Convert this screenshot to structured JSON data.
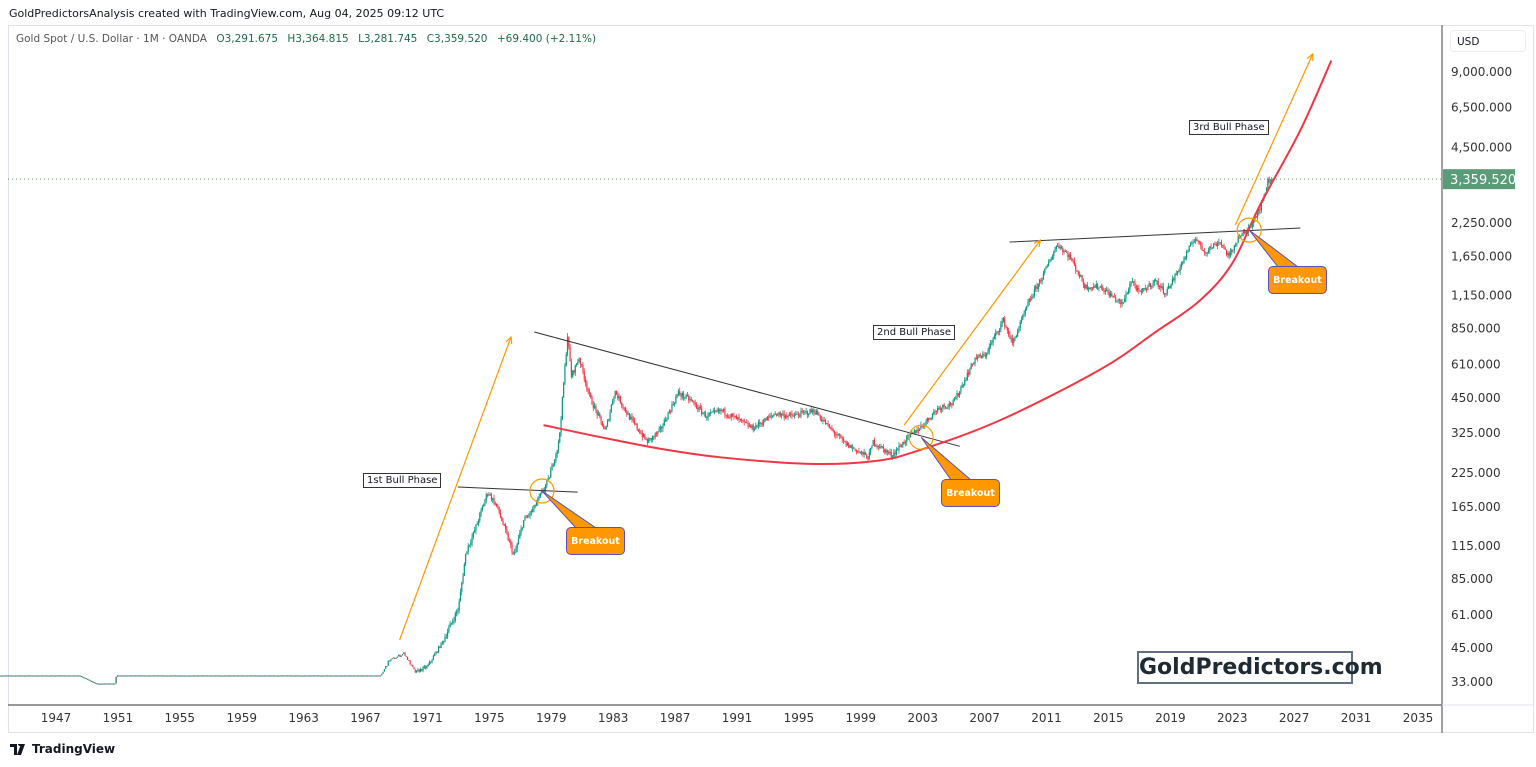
{
  "credit": "GoldPredictorsAnalysis created with TradingView.com, Aug 04, 2025 09:12 UTC",
  "legend": {
    "symbol": "Gold Spot / U.S. Dollar · 1M · OANDA",
    "open": "O3,291.675",
    "high": "H3,364.815",
    "low": "L3,281.745",
    "close": "C3,359.520",
    "change": "+69.400 (+2.11%)"
  },
  "currency": "USD",
  "watermark": "GoldPredictors.com",
  "footer": {
    "brand": "TradingView"
  },
  "colors": {
    "up": "#089981",
    "down": "#f23645",
    "curve": "#f23645",
    "arrow": "#ff9800",
    "price_label": "#5b9c78",
    "trendline": "#333333"
  },
  "chart_data": {
    "type": "candlestick",
    "title": "Gold Spot / U.S. Dollar · 1M · OANDA",
    "scale": "log",
    "ylim": [
      30,
      11000
    ],
    "xlim": [
      1943.3,
      2036.3
    ],
    "last_price": 3359.52,
    "last_price_label": "3,359.520",
    "y_ticks": [
      {
        "v": 9000,
        "label": "9,000.000"
      },
      {
        "v": 6500,
        "label": "6,500.000"
      },
      {
        "v": 4500,
        "label": "4,500.000"
      },
      {
        "v": 2250,
        "label": "2,250.000"
      },
      {
        "v": 1650,
        "label": "1,650.000"
      },
      {
        "v": 1150,
        "label": "1,150.000"
      },
      {
        "v": 850,
        "label": "850.000"
      },
      {
        "v": 610,
        "label": "610.000"
      },
      {
        "v": 450,
        "label": "450.000"
      },
      {
        "v": 325,
        "label": "325.000"
      },
      {
        "v": 225,
        "label": "225.000"
      },
      {
        "v": 165,
        "label": "165.000"
      },
      {
        "v": 115,
        "label": "115.000"
      },
      {
        "v": 85,
        "label": "85.000"
      },
      {
        "v": 61,
        "label": "61.000"
      },
      {
        "v": 45,
        "label": "45.000"
      },
      {
        "v": 33,
        "label": "33.000"
      }
    ],
    "x_ticks": [
      "1947",
      "1951",
      "1955",
      "1959",
      "1963",
      "1967",
      "1971",
      "1975",
      "1979",
      "1983",
      "1987",
      "1991",
      "1995",
      "1999",
      "2003",
      "2007",
      "2011",
      "2015",
      "2019",
      "2023",
      "2027",
      "2031",
      "2035"
    ],
    "price_path": [
      [
        1943.3,
        35
      ],
      [
        1948.5,
        35
      ],
      [
        1949.6,
        32.5
      ],
      [
        1950.8,
        32.5
      ],
      [
        1950.9,
        35
      ],
      [
        1968.0,
        35
      ],
      [
        1968.5,
        40
      ],
      [
        1969.5,
        43
      ],
      [
        1970.2,
        36
      ],
      [
        1971.0,
        38
      ],
      [
        1972.0,
        48
      ],
      [
        1973.0,
        65
      ],
      [
        1973.5,
        110
      ],
      [
        1974.0,
        130
      ],
      [
        1974.9,
        190
      ],
      [
        1975.5,
        165
      ],
      [
        1976.6,
        105
      ],
      [
        1977.2,
        145
      ],
      [
        1977.8,
        160
      ],
      [
        1978.8,
        210
      ],
      [
        1979.5,
        300
      ],
      [
        1980.05,
        800
      ],
      [
        1980.3,
        550
      ],
      [
        1980.8,
        650
      ],
      [
        1981.5,
        450
      ],
      [
        1982.5,
        330
      ],
      [
        1983.1,
        480
      ],
      [
        1984.0,
        380
      ],
      [
        1985.2,
        300
      ],
      [
        1986.0,
        330
      ],
      [
        1987.2,
        470
      ],
      [
        1988.0,
        440
      ],
      [
        1989.0,
        380
      ],
      [
        1990.0,
        400
      ],
      [
        1991.0,
        370
      ],
      [
        1992.0,
        340
      ],
      [
        1993.5,
        390
      ],
      [
        1994.5,
        380
      ],
      [
        1996.0,
        400
      ],
      [
        1997.0,
        340
      ],
      [
        1998.0,
        295
      ],
      [
        1999.5,
        260
      ],
      [
        1999.8,
        300
      ],
      [
        2001.0,
        265
      ],
      [
        2002.0,
        310
      ],
      [
        2003.0,
        350
      ],
      [
        2004.0,
        410
      ],
      [
        2005.0,
        430
      ],
      [
        2006.4,
        650
      ],
      [
        2007.0,
        660
      ],
      [
        2008.2,
        920
      ],
      [
        2008.8,
        740
      ],
      [
        2009.9,
        1100
      ],
      [
        2010.8,
        1400
      ],
      [
        2011.7,
        1850
      ],
      [
        2012.5,
        1650
      ],
      [
        2013.5,
        1250
      ],
      [
        2014.5,
        1250
      ],
      [
        2015.9,
        1060
      ],
      [
        2016.5,
        1330
      ],
      [
        2017.0,
        1170
      ],
      [
        2018.0,
        1320
      ],
      [
        2018.7,
        1180
      ],
      [
        2019.5,
        1450
      ],
      [
        2020.6,
        1970
      ],
      [
        2021.2,
        1720
      ],
      [
        2022.2,
        1900
      ],
      [
        2022.8,
        1640
      ],
      [
        2023.4,
        1980
      ],
      [
        2023.9,
        2050
      ],
      [
        2024.5,
        2400
      ],
      [
        2024.9,
        2650
      ],
      [
        2025.3,
        3300
      ],
      [
        2025.6,
        3360
      ]
    ],
    "annotations": {
      "trendlines": [
        {
          "name": "first-resistance-line",
          "from": [
            1972.97,
            198
          ],
          "to": [
            1980.7,
            189
          ]
        },
        {
          "name": "long-term-downtrend-line",
          "from": [
            1977.9,
            824
          ],
          "to": [
            2005.4,
            288
          ]
        },
        {
          "name": "second-resistance-line",
          "from": [
            2008.6,
            1884
          ],
          "to": [
            2027.4,
            2143
          ]
        }
      ],
      "arrows": [
        {
          "name": "first-bull-phase-arrow",
          "from": [
            1969.2,
            48.5
          ],
          "to": [
            1976.4,
            787
          ]
        },
        {
          "name": "second-bull-phase-arrow",
          "from": [
            2001.8,
            350
          ],
          "to": [
            2010.6,
            1918
          ]
        },
        {
          "name": "third-bull-phase-arrow",
          "from": [
            2023.2,
            2203
          ],
          "to": [
            2028.2,
            10620
          ]
        }
      ],
      "support_curve": [
        [
          1978.5,
          350
        ],
        [
          1982,
          315
        ],
        [
          1986,
          282
        ],
        [
          1990,
          260
        ],
        [
          1995.7,
          245
        ],
        [
          2000,
          252
        ],
        [
          2002.8,
          278
        ],
        [
          2008,
          366
        ],
        [
          2014.4,
          580
        ],
        [
          2018,
          820
        ],
        [
          2020.9,
          1100
        ],
        [
          2023,
          1550
        ],
        [
          2024.8,
          2650
        ],
        [
          2027.4,
          5270
        ],
        [
          2029.4,
          10000
        ]
      ],
      "breakout_points": [
        [
          1978.4,
          191
        ],
        [
          2002.9,
          313
        ],
        [
          2024.1,
          2103
        ]
      ],
      "phase_labels": [
        "1st Bull Phase",
        "2nd Bull Phase",
        "3rd Bull Phase"
      ],
      "breakout_label": "Breakout"
    }
  }
}
